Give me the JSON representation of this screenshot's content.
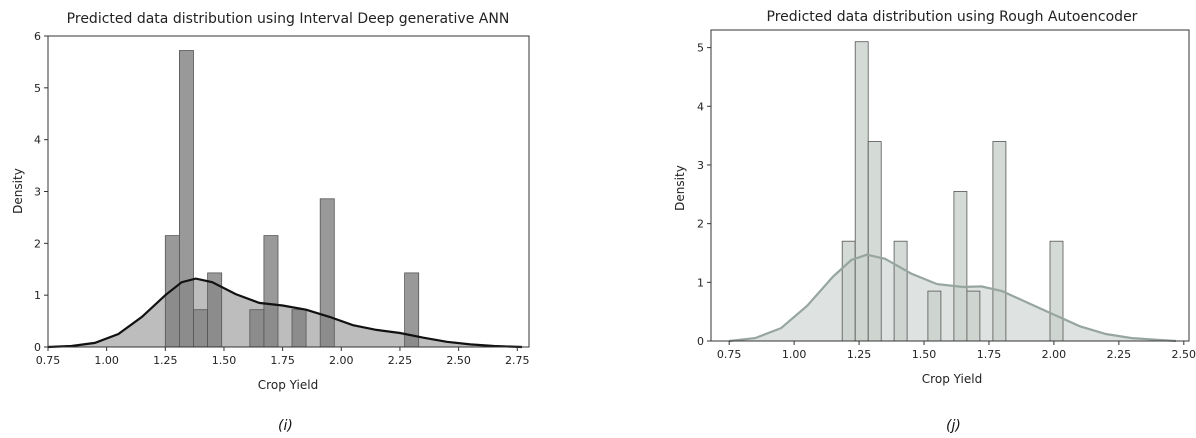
{
  "captions": [
    "(i)",
    "(j)"
  ],
  "chart_data": [
    {
      "type": "bar",
      "title": "Predicted data distribution using Interval Deep generative ANN",
      "xlabel": "Crop Yield",
      "ylabel": "Density",
      "xlim": [
        0.75,
        2.8
      ],
      "ylim": [
        0,
        6
      ],
      "xticks": [
        "0.75",
        "1.00",
        "1.25",
        "1.50",
        "1.75",
        "2.00",
        "2.25",
        "2.50",
        "2.75"
      ],
      "xtick_values": [
        0.75,
        1.0,
        1.25,
        1.5,
        1.75,
        2.0,
        2.25,
        2.5,
        2.75
      ],
      "yticks": [
        "0",
        "1",
        "2",
        "3",
        "4",
        "5",
        "6"
      ],
      "ytick_values": [
        0,
        1,
        2,
        3,
        4,
        5,
        6
      ],
      "bin_width": 0.06,
      "bins": [
        {
          "x": 1.28,
          "density": 2.15
        },
        {
          "x": 1.34,
          "density": 5.72
        },
        {
          "x": 1.4,
          "density": 0.72
        },
        {
          "x": 1.46,
          "density": 1.43
        },
        {
          "x": 1.64,
          "density": 0.72
        },
        {
          "x": 1.7,
          "density": 2.15
        },
        {
          "x": 1.82,
          "density": 0.72
        },
        {
          "x": 1.94,
          "density": 2.86
        },
        {
          "x": 2.3,
          "density": 1.43
        }
      ],
      "kde": [
        [
          0.75,
          0.0
        ],
        [
          0.85,
          0.02
        ],
        [
          0.95,
          0.08
        ],
        [
          1.05,
          0.25
        ],
        [
          1.15,
          0.58
        ],
        [
          1.25,
          1.0
        ],
        [
          1.32,
          1.25
        ],
        [
          1.38,
          1.32
        ],
        [
          1.45,
          1.25
        ],
        [
          1.55,
          1.02
        ],
        [
          1.65,
          0.85
        ],
        [
          1.75,
          0.8
        ],
        [
          1.85,
          0.72
        ],
        [
          1.95,
          0.58
        ],
        [
          2.05,
          0.42
        ],
        [
          2.15,
          0.33
        ],
        [
          2.25,
          0.27
        ],
        [
          2.35,
          0.18
        ],
        [
          2.45,
          0.1
        ],
        [
          2.55,
          0.05
        ],
        [
          2.65,
          0.02
        ],
        [
          2.77,
          0.0
        ]
      ],
      "colors": {
        "bar": "#7f7f7f",
        "kde_line": "#111111",
        "kde_fill": "#9a9a9a"
      }
    },
    {
      "type": "bar",
      "title": "Predicted data distribution using Rough Autoencoder",
      "xlabel": "Crop Yield",
      "ylabel": "Density",
      "xlim": [
        0.68,
        2.52
      ],
      "ylim": [
        0,
        5.3
      ],
      "xticks": [
        "0.75",
        "1.00",
        "1.25",
        "1.50",
        "1.75",
        "2.00",
        "2.25",
        "2.50"
      ],
      "xtick_values": [
        0.75,
        1.0,
        1.25,
        1.5,
        1.75,
        2.0,
        2.25,
        2.5
      ],
      "yticks": [
        "0",
        "1",
        "2",
        "3",
        "4",
        "5"
      ],
      "ytick_values": [
        0,
        1,
        2,
        3,
        4,
        5
      ],
      "bin_width": 0.05,
      "bins": [
        {
          "x": 1.21,
          "density": 1.7
        },
        {
          "x": 1.26,
          "density": 5.1
        },
        {
          "x": 1.31,
          "density": 3.4
        },
        {
          "x": 1.41,
          "density": 1.7
        },
        {
          "x": 1.54,
          "density": 0.85
        },
        {
          "x": 1.64,
          "density": 2.55
        },
        {
          "x": 1.69,
          "density": 0.85
        },
        {
          "x": 1.79,
          "density": 3.4
        },
        {
          "x": 2.01,
          "density": 1.7
        }
      ],
      "kde": [
        [
          0.75,
          0.0
        ],
        [
          0.85,
          0.05
        ],
        [
          0.95,
          0.22
        ],
        [
          1.05,
          0.6
        ],
        [
          1.15,
          1.1
        ],
        [
          1.22,
          1.38
        ],
        [
          1.28,
          1.47
        ],
        [
          1.35,
          1.4
        ],
        [
          1.45,
          1.15
        ],
        [
          1.55,
          0.97
        ],
        [
          1.65,
          0.92
        ],
        [
          1.72,
          0.93
        ],
        [
          1.8,
          0.85
        ],
        [
          1.9,
          0.65
        ],
        [
          2.0,
          0.45
        ],
        [
          2.1,
          0.25
        ],
        [
          2.2,
          0.12
        ],
        [
          2.3,
          0.05
        ],
        [
          2.4,
          0.02
        ],
        [
          2.47,
          0.0
        ]
      ],
      "colors": {
        "bar": "#c9d1cc",
        "kde_line": "#97a5a0",
        "kde_fill": "#c3ccc8"
      }
    }
  ]
}
